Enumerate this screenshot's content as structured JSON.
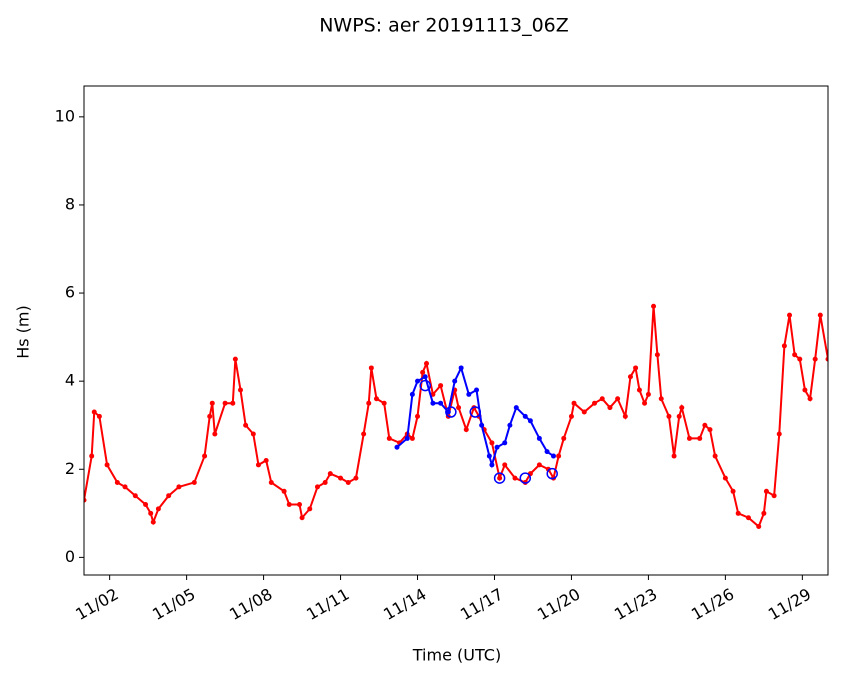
{
  "chart_data": {
    "type": "line",
    "title": "NWPS: aer 20191113_06Z",
    "x_label": "Time (UTC)",
    "y_label": "Hs (m)",
    "xlim": [
      1.0,
      30.0
    ],
    "ylim": [
      -0.4,
      10.7
    ],
    "xticks": [
      {
        "value": 2,
        "label": "11/02"
      },
      {
        "value": 5,
        "label": "11/05"
      },
      {
        "value": 8,
        "label": "11/08"
      },
      {
        "value": 11,
        "label": "11/11"
      },
      {
        "value": 14,
        "label": "11/14"
      },
      {
        "value": 17,
        "label": "11/17"
      },
      {
        "value": 20,
        "label": "11/20"
      },
      {
        "value": 23,
        "label": "11/23"
      },
      {
        "value": 26,
        "label": "11/26"
      },
      {
        "value": 29,
        "label": "11/29"
      }
    ],
    "yticks": [
      0,
      2,
      4,
      6,
      8,
      10
    ],
    "series": [
      {
        "color": "#ff0000",
        "style": "line",
        "x": [
          1.0,
          1.3,
          1.4,
          1.6,
          1.9,
          2.3,
          2.6,
          3.0,
          3.4,
          3.6,
          3.7,
          3.9,
          4.3,
          4.7,
          5.3,
          5.7,
          5.9,
          6.0,
          6.1,
          6.5,
          6.8,
          6.9,
          7.1,
          7.3,
          7.6,
          7.8,
          8.1,
          8.3,
          8.8,
          9.0,
          9.4,
          9.5,
          9.8,
          10.1,
          10.4,
          10.6,
          11.0,
          11.3,
          11.6,
          11.9,
          12.1,
          12.2,
          12.4,
          12.7,
          12.9,
          13.3,
          13.6,
          13.8,
          14.0,
          14.2,
          14.35,
          14.6,
          14.9,
          15.2,
          15.45,
          15.6,
          15.9,
          16.2,
          16.4,
          16.6,
          16.9,
          17.2,
          17.4,
          17.8,
          18.2,
          18.4,
          18.75,
          19.1,
          19.3,
          19.5,
          19.7,
          20.0,
          20.1,
          20.5,
          20.9,
          21.2,
          21.5,
          21.8,
          22.1,
          22.3,
          22.5,
          22.65,
          22.85,
          23.0,
          23.2,
          23.35,
          23.5,
          23.8,
          24.0,
          24.2,
          24.3,
          24.6,
          25.0,
          25.2,
          25.4,
          25.6,
          26.0,
          26.3,
          26.5,
          26.9,
          27.3,
          27.5,
          27.6,
          27.9,
          28.1,
          28.3,
          28.5,
          28.7,
          28.9,
          29.1,
          29.3,
          29.5,
          29.7,
          30.0
        ],
        "values": [
          1.3,
          2.3,
          3.3,
          3.2,
          2.1,
          1.7,
          1.6,
          1.4,
          1.2,
          1.0,
          0.8,
          1.1,
          1.4,
          1.6,
          1.7,
          2.3,
          3.2,
          3.5,
          2.8,
          3.5,
          3.5,
          4.5,
          3.8,
          3.0,
          2.8,
          2.1,
          2.2,
          1.7,
          1.5,
          1.2,
          1.2,
          0.9,
          1.1,
          1.6,
          1.7,
          1.9,
          1.8,
          1.7,
          1.8,
          2.8,
          3.5,
          4.3,
          3.6,
          3.5,
          2.7,
          2.6,
          2.8,
          2.7,
          3.2,
          4.2,
          4.4,
          3.7,
          3.9,
          3.2,
          3.8,
          3.4,
          2.9,
          3.4,
          3.2,
          2.9,
          2.6,
          1.8,
          2.1,
          1.8,
          1.7,
          1.9,
          2.1,
          2.0,
          1.8,
          2.3,
          2.7,
          3.2,
          3.5,
          3.3,
          3.5,
          3.6,
          3.4,
          3.6,
          3.2,
          4.1,
          4.3,
          3.8,
          3.5,
          3.7,
          5.7,
          4.6,
          3.6,
          3.2,
          2.3,
          3.2,
          3.4,
          2.7,
          2.7,
          3.0,
          2.9,
          2.3,
          1.8,
          1.5,
          1.0,
          0.9,
          0.7,
          1.0,
          1.5,
          1.4,
          2.8,
          4.8,
          5.5,
          4.6,
          4.5,
          3.8,
          3.6,
          4.5,
          5.5,
          4.5
        ]
      },
      {
        "color": "#0000ff",
        "style": "line",
        "x": [
          13.2,
          13.6,
          13.8,
          14.0,
          14.3,
          14.6,
          14.9,
          15.2,
          15.45,
          15.7,
          16.0,
          16.3,
          16.5,
          16.8,
          16.9,
          17.1,
          17.4,
          17.6,
          17.85,
          18.2,
          18.4,
          18.75,
          19.05,
          19.3
        ],
        "values": [
          2.5,
          2.7,
          3.7,
          4.0,
          4.1,
          3.5,
          3.5,
          3.3,
          4.0,
          4.3,
          3.7,
          3.8,
          3.0,
          2.3,
          2.1,
          2.5,
          2.6,
          3.0,
          3.4,
          3.2,
          3.1,
          2.7,
          2.4,
          2.3
        ]
      },
      {
        "color": "#0000ff",
        "style": "markers",
        "x": [
          14.3,
          15.3,
          16.25,
          17.2,
          18.2,
          19.25
        ],
        "values": [
          3.9,
          3.3,
          3.3,
          1.8,
          1.8,
          1.9
        ]
      }
    ]
  }
}
